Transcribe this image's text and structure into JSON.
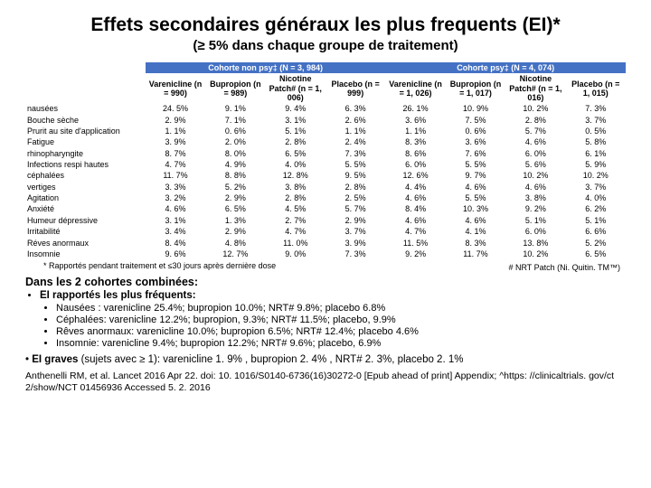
{
  "title": "Effets secondaires généraux les plus frequents (EI)*",
  "subtitle": "(≥ 5% dans chaque groupe de traitement)",
  "table": {
    "group_headers": {
      "nonpsy": "Cohorte non psy‡ (N = 3, 984)",
      "psy": "Cohorte psy‡ (N = 4, 074)"
    },
    "col_headers": [
      "Varenicline (n = 990)",
      "Bupropion (n = 989)",
      "Nicotine Patch# (n = 1, 006)",
      "Placebo (n = 999)",
      "Varenicline (n = 1, 026)",
      "Bupropion (n = 1, 017)",
      "Nicotine Patch# (n = 1, 016)",
      "Placebo (n = 1, 015)"
    ],
    "rows": [
      {
        "label": "nausées",
        "v": [
          "24. 5%",
          "9. 1%",
          "9. 4%",
          "6. 3%",
          "26. 1%",
          "10. 9%",
          "10. 2%",
          "7. 3%"
        ]
      },
      {
        "label": "Bouche sèche",
        "v": [
          "2. 9%",
          "7. 1%",
          "3. 1%",
          "2. 6%",
          "3. 6%",
          "7. 5%",
          "2. 8%",
          "3. 7%"
        ]
      },
      {
        "label": "Prurit au site d'application",
        "v": [
          "1. 1%",
          "0. 6%",
          "5. 1%",
          "1. 1%",
          "1. 1%",
          "0. 6%",
          "5. 7%",
          "0. 5%"
        ]
      },
      {
        "label": "Fatigue",
        "v": [
          "3. 9%",
          "2. 0%",
          "2. 8%",
          "2. 4%",
          "8. 3%",
          "3. 6%",
          "4. 6%",
          "5. 8%"
        ]
      },
      {
        "label": "rhinopharyngite",
        "v": [
          "8. 7%",
          "8. 0%",
          "6. 5%",
          "7. 3%",
          "8. 6%",
          "7. 6%",
          "6. 0%",
          "6. 1%"
        ]
      },
      {
        "label": "Infections respi hautes",
        "v": [
          "4. 7%",
          "4. 9%",
          "4. 0%",
          "5. 5%",
          "6. 0%",
          "5. 5%",
          "5. 6%",
          "5. 9%"
        ]
      },
      {
        "label": "céphalées",
        "v": [
          "11. 7%",
          "8. 8%",
          "12. 8%",
          "9. 5%",
          "12. 6%",
          "9. 7%",
          "10. 2%",
          "10. 2%"
        ]
      },
      {
        "label": "vertiges",
        "v": [
          "3. 3%",
          "5. 2%",
          "3. 8%",
          "2. 8%",
          "4. 4%",
          "4. 6%",
          "4. 6%",
          "3. 7%"
        ]
      },
      {
        "label": "Agitation",
        "v": [
          "3. 2%",
          "2. 9%",
          "2. 8%",
          "2. 5%",
          "4. 6%",
          "5. 5%",
          "3. 8%",
          "4. 0%"
        ]
      },
      {
        "label": "Anxiété",
        "v": [
          "4. 6%",
          "6. 5%",
          "4. 5%",
          "5. 7%",
          "8. 4%",
          "10. 3%",
          "9. 2%",
          "6. 2%"
        ]
      },
      {
        "label": "Humeur dépressive",
        "v": [
          "3. 1%",
          "1. 3%",
          "2. 7%",
          "2. 9%",
          "4. 6%",
          "4. 6%",
          "5. 1%",
          "5. 1%"
        ]
      },
      {
        "label": "Irritabilité",
        "v": [
          "3. 4%",
          "2. 9%",
          "4. 7%",
          "3. 7%",
          "4. 7%",
          "4. 1%",
          "6. 0%",
          "6. 6%"
        ]
      },
      {
        "label": "Réves anormaux",
        "v": [
          "8. 4%",
          "4. 8%",
          "11. 0%",
          "3. 9%",
          "11. 5%",
          "8. 3%",
          "13. 8%",
          "5. 2%"
        ]
      },
      {
        "label": "Insomnie",
        "v": [
          "9. 6%",
          "12. 7%",
          "9. 0%",
          "7. 3%",
          "9. 2%",
          "11. 7%",
          "10. 2%",
          "6. 5%"
        ]
      }
    ],
    "colors": {
      "header_bg": "#4471c4",
      "header_fg": "#ffffff"
    }
  },
  "footnote": "* Rapportés pendant traitement et ≤30 jours après dernière dose",
  "nrt_note": "# NRT Patch (Ni. Quitin. TM™)",
  "combined": {
    "title": "Dans les 2 cohortes combinées:",
    "frequent_label": "EI rapportés les plus fréquents:",
    "bullets": [
      "Nausées : varenicline 25.4%; bupropion 10.0%; NRT# 9.8%; placebo 6.8%",
      "Céphalées: varenicline 12.2%; bupropion, 9.3%; NRT# 11.5%; placebo, 9.9%",
      "Rêves anormaux: varenicline 10.0%; bupropion 6.5%; NRT# 12.4%; placebo 4.6%",
      "Insomnie: varenicline 9.4%; bupropion 12.2%; NRT# 9.6%; placebo, 6.9%"
    ],
    "serious_label": "EI graves",
    "serious_text": " (sujets avec ≥ 1):  varenicline 1. 9% , bupropion 2. 4% ,  NRT# 2. 3%, placebo 2. 1%"
  },
  "reference": "Anthenelli RM, et al. Lancet 2016 Apr 22. doi: 10. 1016/S0140-6736(16)30272-0 [Epub ahead of print] Appendix; ^https: //clinicaltrials. gov/ct 2/show/NCT 01456936 Accessed 5. 2. 2016"
}
